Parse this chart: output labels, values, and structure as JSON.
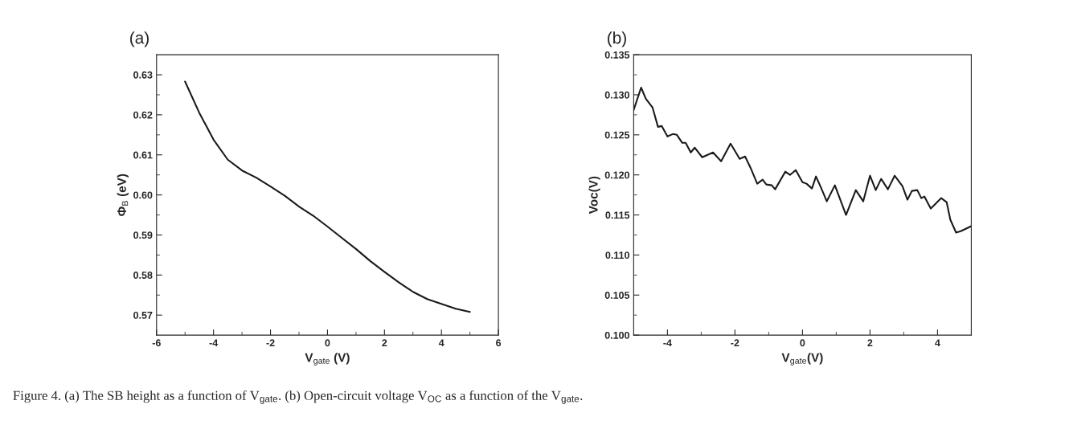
{
  "chart_data": [
    {
      "type": "line",
      "title": "(a)",
      "xlabel": "V$_{gate}$ (V)",
      "ylabel": "Φ$_{B}$ (eV)",
      "x": [
        -5,
        -4.5,
        -4,
        -3.5,
        -3,
        -2.5,
        -2,
        -1.5,
        -1,
        -0.5,
        0,
        0.5,
        1,
        1.5,
        2,
        2.5,
        3,
        3.5,
        4,
        4.5,
        5
      ],
      "series": [
        {
          "color": "#1a1a1a",
          "values": [
            0.6283,
            0.6205,
            0.6138,
            0.6088,
            0.6061,
            0.6043,
            0.6021,
            0.5998,
            0.5971,
            0.5948,
            0.5921,
            0.5893,
            0.5865,
            0.5835,
            0.5808,
            0.5782,
            0.5758,
            0.574,
            0.5728,
            0.5716,
            0.5708
          ]
        }
      ],
      "xlim": [
        -6,
        6
      ],
      "xticks": [
        -6,
        {
          "value": -5,
          "label": null
        },
        -4,
        {
          "value": -3,
          "label": null
        },
        -2,
        {
          "value": -1,
          "label": null
        },
        0,
        {
          "value": 1,
          "label": null
        },
        2,
        {
          "value": 3,
          "label": null
        },
        4,
        {
          "value": 5,
          "label": null
        },
        6
      ],
      "ylim": [
        0.565,
        0.635
      ],
      "yticks": [
        {
          "value": 0.57,
          "label": "0.57"
        },
        {
          "value": 0.575,
          "label": null
        },
        {
          "value": 0.58,
          "label": "0.58"
        },
        {
          "value": 0.585,
          "label": null
        },
        {
          "value": 0.59,
          "label": "0.59"
        },
        {
          "value": 0.595,
          "label": null
        },
        {
          "value": 0.6,
          "label": "0.60"
        },
        {
          "value": 0.605,
          "label": null
        },
        {
          "value": 0.61,
          "label": "0.61"
        },
        {
          "value": 0.615,
          "label": null
        },
        {
          "value": 0.62,
          "label": "0.62"
        },
        {
          "value": 0.625,
          "label": null
        },
        {
          "value": 0.63,
          "label": "0.63"
        }
      ],
      "grid": false,
      "annotations": [
        "Figure 4. (a) The SB height as a function of V$_{gate}$. (b) Open-circuit voltage V$_{OC}$ as a function of the V$_{gate}$."
      ]
    },
    {
      "type": "line",
      "title": "(b)",
      "xlabel": "V$_{gate}$(V)",
      "ylabel": "Voc(V)",
      "x": [
        -5,
        -4.78,
        -4.64,
        -4.44,
        -4.28,
        -4.17,
        -4.0,
        -3.84,
        -3.72,
        -3.56,
        -3.46,
        -3.31,
        -3.19,
        -2.97,
        -2.65,
        -2.41,
        -2.13,
        -1.86,
        -1.7,
        -1.54,
        -1.34,
        -1.18,
        -1.07,
        -0.91,
        -0.81,
        -0.51,
        -0.37,
        -0.2,
        0,
        0.12,
        0.28,
        0.4,
        0.55,
        0.72,
        0.96,
        1.29,
        1.58,
        1.8,
        2.0,
        2.17,
        2.33,
        2.53,
        2.73,
        2.96,
        3.11,
        3.24,
        3.4,
        3.52,
        3.61,
        3.8,
        4.11,
        4.27,
        4.38,
        4.55,
        4.7,
        4.85,
        5
      ],
      "series": [
        {
          "color": "#1a1a1a",
          "values": [
            0.1281,
            0.1309,
            0.1295,
            0.1284,
            0.126,
            0.1261,
            0.1248,
            0.1251,
            0.125,
            0.124,
            0.124,
            0.1228,
            0.1234,
            0.1222,
            0.1228,
            0.1217,
            0.1239,
            0.122,
            0.1223,
            0.1209,
            0.1189,
            0.1194,
            0.1188,
            0.1187,
            0.1182,
            0.1204,
            0.12,
            0.1206,
            0.1191,
            0.1189,
            0.1183,
            0.1198,
            0.1184,
            0.1167,
            0.1187,
            0.115,
            0.1181,
            0.1167,
            0.1199,
            0.1181,
            0.1195,
            0.1182,
            0.1199,
            0.1186,
            0.1169,
            0.118,
            0.1181,
            0.1171,
            0.1173,
            0.1158,
            0.1171,
            0.1166,
            0.1144,
            0.1128,
            0.113,
            0.1133,
            0.1136
          ]
        }
      ],
      "xlim": [
        -5,
        5
      ],
      "xticks": [
        -4,
        {
          "value": -3,
          "label": null
        },
        -2,
        {
          "value": -1,
          "label": null
        },
        0,
        {
          "value": 1,
          "label": null
        },
        2,
        {
          "value": 3,
          "label": null
        },
        4
      ],
      "ylim": [
        0.1,
        0.135
      ],
      "yticks": [
        {
          "value": 0.1,
          "label": "0.100"
        },
        {
          "value": 0.1025,
          "label": null
        },
        {
          "value": 0.105,
          "label": "0.105"
        },
        {
          "value": 0.1075,
          "label": null
        },
        {
          "value": 0.11,
          "label": "0.110"
        },
        {
          "value": 0.1125,
          "label": null
        },
        {
          "value": 0.115,
          "label": "0.115"
        },
        {
          "value": 0.1175,
          "label": null
        },
        {
          "value": 0.12,
          "label": "0.120"
        },
        {
          "value": 0.1225,
          "label": null
        },
        {
          "value": 0.125,
          "label": "0.125"
        },
        {
          "value": 0.1275,
          "label": null
        },
        {
          "value": 0.13,
          "label": "0.130"
        },
        {
          "value": 0.1325,
          "label": null
        },
        {
          "value": 0.135,
          "label": "0.135"
        }
      ],
      "grid": false
    }
  ]
}
